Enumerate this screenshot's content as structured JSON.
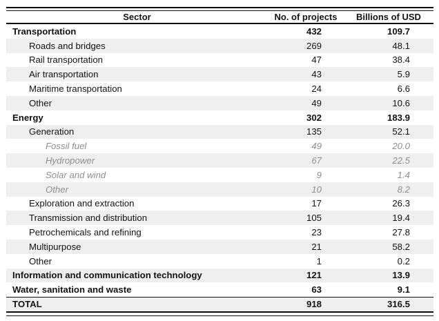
{
  "table": {
    "columns": [
      "Sector",
      "No. of projects",
      "Billions of USD"
    ],
    "rows": [
      {
        "sector": "Transportation",
        "projects": "432",
        "usd": "109.7",
        "level": 0,
        "bold": true,
        "muted": false,
        "total": false
      },
      {
        "sector": "Roads and bridges",
        "projects": "269",
        "usd": "48.1",
        "level": 1,
        "bold": false,
        "muted": false,
        "total": false
      },
      {
        "sector": "Rail transportation",
        "projects": "47",
        "usd": "38.4",
        "level": 1,
        "bold": false,
        "muted": false,
        "total": false
      },
      {
        "sector": "Air transportation",
        "projects": "43",
        "usd": "5.9",
        "level": 1,
        "bold": false,
        "muted": false,
        "total": false
      },
      {
        "sector": "Maritime transportation",
        "projects": "24",
        "usd": "6.6",
        "level": 1,
        "bold": false,
        "muted": false,
        "total": false
      },
      {
        "sector": "Other",
        "projects": "49",
        "usd": "10.6",
        "level": 1,
        "bold": false,
        "muted": false,
        "total": false
      },
      {
        "sector": "Energy",
        "projects": "302",
        "usd": "183.9",
        "level": 0,
        "bold": true,
        "muted": false,
        "total": false
      },
      {
        "sector": "Generation",
        "projects": "135",
        "usd": "52.1",
        "level": 1,
        "bold": false,
        "muted": false,
        "total": false
      },
      {
        "sector": "Fossil fuel",
        "projects": "49",
        "usd": "20.0",
        "level": 2,
        "bold": false,
        "muted": true,
        "total": false
      },
      {
        "sector": "Hydropower",
        "projects": "67",
        "usd": "22.5",
        "level": 2,
        "bold": false,
        "muted": true,
        "total": false
      },
      {
        "sector": "Solar and wind",
        "projects": "9",
        "usd": "1.4",
        "level": 2,
        "bold": false,
        "muted": true,
        "total": false
      },
      {
        "sector": "Other",
        "projects": "10",
        "usd": "8.2",
        "level": 2,
        "bold": false,
        "muted": true,
        "total": false
      },
      {
        "sector": "Exploration and extraction",
        "projects": "17",
        "usd": "26.3",
        "level": 1,
        "bold": false,
        "muted": false,
        "total": false
      },
      {
        "sector": "Transmission and distribution",
        "projects": "105",
        "usd": "19.4",
        "level": 1,
        "bold": false,
        "muted": false,
        "total": false
      },
      {
        "sector": "Petrochemicals and refining",
        "projects": "23",
        "usd": "27.8",
        "level": 1,
        "bold": false,
        "muted": false,
        "total": false
      },
      {
        "sector": "Multipurpose",
        "projects": "21",
        "usd": "58.2",
        "level": 1,
        "bold": false,
        "muted": false,
        "total": false
      },
      {
        "sector": "Other",
        "projects": "1",
        "usd": "0.2",
        "level": 1,
        "bold": false,
        "muted": false,
        "total": false
      },
      {
        "sector": "Information and communication technology",
        "projects": "121",
        "usd": "13.9",
        "level": 0,
        "bold": true,
        "muted": false,
        "total": false
      },
      {
        "sector": "Water, sanitation and waste",
        "projects": "63",
        "usd": "9.1",
        "level": 0,
        "bold": true,
        "muted": false,
        "total": false
      },
      {
        "sector": "TOTAL",
        "projects": "918",
        "usd": "316.5",
        "level": 0,
        "bold": true,
        "muted": false,
        "total": true
      }
    ]
  },
  "colors": {
    "row_band": "#efefef",
    "text": "#121212",
    "muted_text": "#8e8e8e",
    "rule": "#0d0d0d",
    "background": "#ffffff"
  }
}
